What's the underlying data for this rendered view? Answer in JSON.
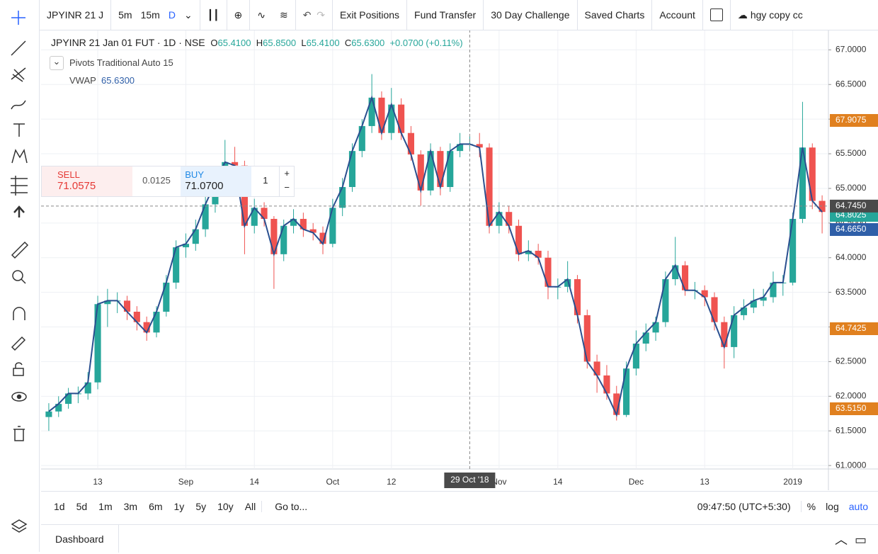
{
  "toolbar": {
    "symbol": "JPYINR 21 J",
    "intervals": [
      "5m",
      "15m",
      "D"
    ],
    "menu": [
      "Exit Positions",
      "Fund Transfer",
      "30 Day Challenge",
      "Saved Charts",
      "Account"
    ],
    "layout": "hgy copy cc"
  },
  "legend": {
    "title": "JPYINR 21 Jan 01 FUT · 1D · NSE",
    "ohlc": [
      {
        "key": "O",
        "value": "65.4100"
      },
      {
        "key": "H",
        "value": "65.8500"
      },
      {
        "key": "L",
        "value": "65.4100"
      },
      {
        "key": "C",
        "value": "65.6300"
      }
    ],
    "change": "+0.0700 (+0.11%)",
    "indicators": [
      {
        "name": "Pivots Traditional Auto 15"
      },
      {
        "name": "VWAP",
        "value": "65.6300"
      }
    ]
  },
  "trade": {
    "sell_label": "SELL",
    "sell_price": "71.0575",
    "spread": "0.0125",
    "buy_label": "BUY",
    "buy_price": "71.0700",
    "quantity": 1
  },
  "chart_data": {
    "type": "candlestick",
    "up_color": "#26a69a",
    "down_color": "#ef5350",
    "line_color": "#2a4f8f",
    "grid": true,
    "ylim": [
      60.95,
      67.29
    ],
    "yticks": [
      {
        "value": 61,
        "label": "61.0000"
      },
      {
        "value": 61.5,
        "label": "61.5000"
      },
      {
        "value": 62,
        "label": "62.0000"
      },
      {
        "value": 62.5,
        "label": "62.5000"
      },
      {
        "value": 63,
        "label": "63.0000"
      },
      {
        "value": 63.5,
        "label": "63.5000"
      },
      {
        "value": 64,
        "label": "64.0000"
      },
      {
        "value": 64.5,
        "label": "64.5000"
      },
      {
        "value": 65,
        "label": "65.0000"
      },
      {
        "value": 65.5,
        "label": "65.5000"
      },
      {
        "value": 66,
        "label": "66.0000"
      },
      {
        "value": 66.5,
        "label": "66.5000"
      },
      {
        "value": 67,
        "label": "67.0000"
      }
    ],
    "xticks": [
      {
        "value": 5,
        "label": "13"
      },
      {
        "value": 14,
        "label": "Sep"
      },
      {
        "value": 21,
        "label": "14"
      },
      {
        "value": 29,
        "label": "Oct"
      },
      {
        "value": 35,
        "label": "12"
      },
      {
        "value": 46,
        "label": "Nov"
      },
      {
        "value": 52,
        "label": "14"
      },
      {
        "value": 60,
        "label": "Dec"
      },
      {
        "value": 67,
        "label": "13"
      },
      {
        "value": 76,
        "label": "2019"
      }
    ],
    "crosshair": {
      "price": {
        "value": 64.745,
        "label": "64.7450"
      },
      "index": 43,
      "date_label": "29 Oct '18"
    },
    "badges": [
      {
        "label": "67.9075",
        "color": "#e0801f"
      },
      {
        "label": "64.8025",
        "color": "#26a69a"
      },
      {
        "label": "64.6650",
        "color": "#2f5fa8"
      },
      {
        "label": "64.7425",
        "color": "#e0801f"
      },
      {
        "label": "63.5150",
        "color": "#e0801f"
      }
    ],
    "candles": [
      [
        61.7,
        61.9,
        61.5,
        61.78
      ],
      [
        61.78,
        62.0,
        61.7,
        61.89
      ],
      [
        61.89,
        62.12,
        61.82,
        62.04
      ],
      [
        62.04,
        62.14,
        61.9,
        62.04
      ],
      [
        62.04,
        62.35,
        61.95,
        62.2
      ],
      [
        62.2,
        63.45,
        62.1,
        63.33
      ],
      [
        63.33,
        63.55,
        63.0,
        63.38
      ],
      [
        63.38,
        63.5,
        63.2,
        63.38
      ],
      [
        63.38,
        63.45,
        63.1,
        63.22
      ],
      [
        63.22,
        63.3,
        62.95,
        63.07
      ],
      [
        63.07,
        63.15,
        62.8,
        62.92
      ],
      [
        62.92,
        63.3,
        62.85,
        63.22
      ],
      [
        63.22,
        63.75,
        63.15,
        63.64
      ],
      [
        63.64,
        64.25,
        63.55,
        64.15
      ],
      [
        64.15,
        64.35,
        64.0,
        64.2
      ],
      [
        64.2,
        64.55,
        64.1,
        64.41
      ],
      [
        64.41,
        64.9,
        64.3,
        64.77
      ],
      [
        64.77,
        65.2,
        64.65,
        65.08
      ],
      [
        65.08,
        65.7,
        65.0,
        65.38
      ],
      [
        65.38,
        65.6,
        65.2,
        65.33
      ],
      [
        65.33,
        65.4,
        64.05,
        64.46
      ],
      [
        64.46,
        64.85,
        64.35,
        64.72
      ],
      [
        64.72,
        64.8,
        64.45,
        64.56
      ],
      [
        64.56,
        64.6,
        63.55,
        64.05
      ],
      [
        64.05,
        64.55,
        63.95,
        64.46
      ],
      [
        64.46,
        64.7,
        64.35,
        64.56
      ],
      [
        64.56,
        64.65,
        64.3,
        64.41
      ],
      [
        64.41,
        64.5,
        64.25,
        64.36
      ],
      [
        64.36,
        64.45,
        64.05,
        64.2
      ],
      [
        64.2,
        64.85,
        64.15,
        64.72
      ],
      [
        64.72,
        65.15,
        64.6,
        65.02
      ],
      [
        65.02,
        65.65,
        64.95,
        65.54
      ],
      [
        65.54,
        66.0,
        65.45,
        65.9
      ],
      [
        65.9,
        66.65,
        65.8,
        66.31
      ],
      [
        66.31,
        66.4,
        65.7,
        65.8
      ],
      [
        65.8,
        66.45,
        65.7,
        66.21
      ],
      [
        66.21,
        66.3,
        65.7,
        65.8
      ],
      [
        65.8,
        65.9,
        65.4,
        65.49
      ],
      [
        65.49,
        65.55,
        64.75,
        64.97
      ],
      [
        64.97,
        65.65,
        64.9,
        65.54
      ],
      [
        65.54,
        65.6,
        64.9,
        65.02
      ],
      [
        65.02,
        65.65,
        64.95,
        65.54
      ],
      [
        65.54,
        65.8,
        65.45,
        65.64
      ],
      [
        65.64,
        65.75,
        65.55,
        65.64
      ],
      [
        65.64,
        65.8,
        65.45,
        65.59
      ],
      [
        65.59,
        65.65,
        64.35,
        64.46
      ],
      [
        64.46,
        64.8,
        64.35,
        64.66
      ],
      [
        64.66,
        64.75,
        64.35,
        64.46
      ],
      [
        64.46,
        64.55,
        63.95,
        64.05
      ],
      [
        64.05,
        64.25,
        63.95,
        64.1
      ],
      [
        64.1,
        64.2,
        63.9,
        64.0
      ],
      [
        64.0,
        64.1,
        63.4,
        63.58
      ],
      [
        63.58,
        63.7,
        63.4,
        63.58
      ],
      [
        63.58,
        63.95,
        63.5,
        63.69
      ],
      [
        63.69,
        63.75,
        63.05,
        63.17
      ],
      [
        63.17,
        63.25,
        62.4,
        62.5
      ],
      [
        62.5,
        62.6,
        62.05,
        62.3
      ],
      [
        62.3,
        62.45,
        61.95,
        62.04
      ],
      [
        62.04,
        62.15,
        61.65,
        61.73
      ],
      [
        61.73,
        62.5,
        61.7,
        62.4
      ],
      [
        62.4,
        62.95,
        62.3,
        62.76
      ],
      [
        62.76,
        63.05,
        62.65,
        62.92
      ],
      [
        62.92,
        63.15,
        62.8,
        63.07
      ],
      [
        63.07,
        63.8,
        63.0,
        63.69
      ],
      [
        63.69,
        64.3,
        63.6,
        63.89
      ],
      [
        63.89,
        63.95,
        63.45,
        63.53
      ],
      [
        63.53,
        63.65,
        63.4,
        63.53
      ],
      [
        63.53,
        63.6,
        63.3,
        63.43
      ],
      [
        63.43,
        63.5,
        62.95,
        63.07
      ],
      [
        63.07,
        63.15,
        62.4,
        62.71
      ],
      [
        62.71,
        63.3,
        62.55,
        63.17
      ],
      [
        63.17,
        63.4,
        63.1,
        63.28
      ],
      [
        63.28,
        63.55,
        63.2,
        63.38
      ],
      [
        63.38,
        63.55,
        63.3,
        63.43
      ],
      [
        63.43,
        63.8,
        63.35,
        63.64
      ],
      [
        63.64,
        63.75,
        63.45,
        63.64
      ],
      [
        63.64,
        64.65,
        63.6,
        64.56
      ],
      [
        64.56,
        66.25,
        64.5,
        65.59
      ],
      [
        65.59,
        65.65,
        64.7,
        64.82
      ],
      [
        64.82,
        64.9,
        64.35,
        64.66
      ]
    ]
  },
  "bottom": {
    "ranges": [
      "1d",
      "5d",
      "1m",
      "3m",
      "6m",
      "1y",
      "5y",
      "10y",
      "All"
    ],
    "goto": "Go to...",
    "clock": "09:47:50 (UTC+5:30)",
    "scale": [
      "%",
      "log",
      "auto"
    ]
  },
  "footer": {
    "tab": "Dashboard"
  }
}
